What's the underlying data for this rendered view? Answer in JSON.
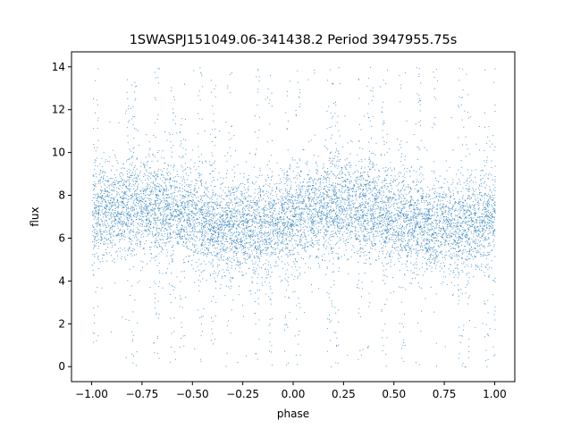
{
  "chart_data": {
    "type": "scatter",
    "title": "1SWASPJ151049.06-341438.2 Period 3947955.75s",
    "xlabel": "phase",
    "ylabel": "flux",
    "xlim": [
      -1.1,
      1.1
    ],
    "ylim": [
      -0.7,
      14.7
    ],
    "xticks": [
      -1.0,
      -0.75,
      -0.5,
      -0.25,
      0.0,
      0.25,
      0.5,
      0.75,
      1.0
    ],
    "xtick_labels": [
      "−1.00",
      "−0.75",
      "−0.50",
      "−0.25",
      "0.00",
      "0.25",
      "0.50",
      "0.75",
      "1.00"
    ],
    "yticks": [
      0,
      2,
      4,
      6,
      8,
      10,
      12,
      14
    ],
    "ytick_labels": [
      "0",
      "2",
      "4",
      "6",
      "8",
      "10",
      "12",
      "14"
    ],
    "grid": false,
    "marker_color": "#1f77b4",
    "phase_range": [
      -1.0,
      1.0
    ],
    "typical_flux_band": [
      5.0,
      9.0
    ],
    "flux_range": [
      0.0,
      14.0
    ],
    "spike_phases": [
      -0.98,
      -0.82,
      -0.79,
      -0.68,
      -0.6,
      -0.55,
      -0.46,
      -0.4,
      -0.32,
      -0.18,
      -0.12,
      -0.03,
      0.02,
      0.18,
      0.21,
      0.33,
      0.38,
      0.45,
      0.54,
      0.62,
      0.7,
      0.83,
      0.86,
      0.96,
      1.0
    ]
  }
}
